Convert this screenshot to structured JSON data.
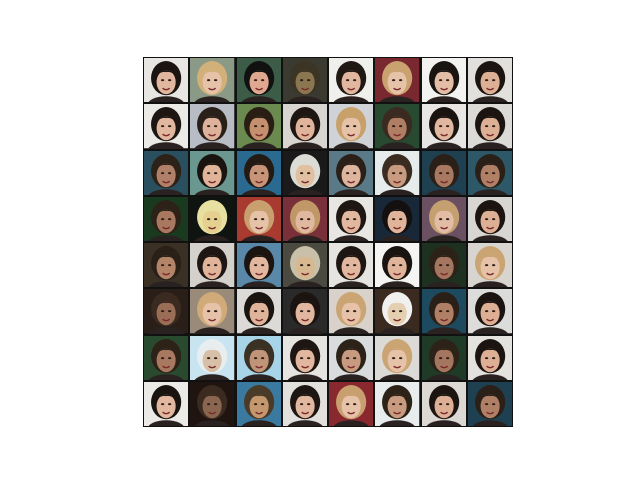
{
  "grid": {
    "rows": 8,
    "cols": 8,
    "tiles": [
      [
        {
          "bg": "#e8e6e2",
          "hair": "#1c1410",
          "skin": "#e2b79f"
        },
        {
          "bg": "#8a9a86",
          "hair": "#d2b07a",
          "skin": "#e6c2a8"
        },
        {
          "bg": "#3c5c48",
          "hair": "#111111",
          "skin": "#e0a890"
        },
        {
          "bg": "#3a3a30",
          "hair": "#3c3424",
          "skin": "#8a7650"
        },
        {
          "bg": "#efefec",
          "hair": "#201812",
          "skin": "#e2b79f"
        },
        {
          "bg": "#7a2830",
          "hair": "#caa270",
          "skin": "#e6c2a8"
        },
        {
          "bg": "#f2f2f0",
          "hair": "#1a1410",
          "skin": "#e4bda6"
        },
        {
          "bg": "#e2e0dc",
          "hair": "#1c1410",
          "skin": "#ddb096"
        }
      ],
      [
        {
          "bg": "#eceae6",
          "hair": "#1e1612",
          "skin": "#e2b79f"
        },
        {
          "bg": "#b8bcc4",
          "hair": "#2a201a",
          "skin": "#deb29a"
        },
        {
          "bg": "#6a8a50",
          "hair": "#2a1e14",
          "skin": "#c49070"
        },
        {
          "bg": "#d8d4d0",
          "hair": "#1e1612",
          "skin": "#e0b49a"
        },
        {
          "bg": "#cfd2d6",
          "hair": "#c8a06a",
          "skin": "#e6c2a8"
        },
        {
          "bg": "#284a30",
          "hair": "#3a2a20",
          "skin": "#b07e64"
        },
        {
          "bg": "#e8e6e4",
          "hair": "#1a1410",
          "skin": "#e2b79f"
        },
        {
          "bg": "#dcdad6",
          "hair": "#1c1410",
          "skin": "#ddb096"
        }
      ],
      [
        {
          "bg": "#2a5060",
          "hair": "#2c2218",
          "skin": "#b08068"
        },
        {
          "bg": "#6a9890",
          "hair": "#1a1410",
          "skin": "#e0b49a"
        },
        {
          "bg": "#2a6a90",
          "hair": "#241a14",
          "skin": "#c89478"
        },
        {
          "bg": "#1a1a1a",
          "hair": "#dcdcd6",
          "skin": "#e0c0a0"
        },
        {
          "bg": "#5a7a88",
          "hair": "#2a2018",
          "skin": "#ddb49e"
        },
        {
          "bg": "#e6ecec",
          "hair": "#3a2c20",
          "skin": "#c89a80"
        },
        {
          "bg": "#1e4050",
          "hair": "#2a2018",
          "skin": "#a87860"
        },
        {
          "bg": "#2c5868",
          "hair": "#2a2018",
          "skin": "#b08066"
        }
      ],
      [
        {
          "bg": "#1a3a20",
          "hair": "#2c2218",
          "skin": "#a87860"
        },
        {
          "bg": "#101410",
          "hair": "#e8e0a0",
          "skin": "#e6d090"
        },
        {
          "bg": "#a83a30",
          "hair": "#c8a070",
          "skin": "#e6c2a8"
        },
        {
          "bg": "#7a3038",
          "hair": "#c09868",
          "skin": "#e0b8a0"
        },
        {
          "bg": "#e8e6e2",
          "hair": "#1e1612",
          "skin": "#e2b79f"
        },
        {
          "bg": "#182838",
          "hair": "#141010",
          "skin": "#e0b49a"
        },
        {
          "bg": "#6a5060",
          "hair": "#c4a070",
          "skin": "#e2bca4"
        },
        {
          "bg": "#d8d6d2",
          "hair": "#1c1410",
          "skin": "#ddb096"
        }
      ],
      [
        {
          "bg": "#3a3024",
          "hair": "#2a2018",
          "skin": "#b48468"
        },
        {
          "bg": "#d4d0cc",
          "hair": "#1e1612",
          "skin": "#e0b49a"
        },
        {
          "bg": "#5a88a8",
          "hair": "#1c1410",
          "skin": "#e2b79f"
        },
        {
          "bg": "#4a4a40",
          "hair": "#c8c0a8",
          "skin": "#d8b890"
        },
        {
          "bg": "#e6e4e0",
          "hair": "#1e1612",
          "skin": "#e2b79f"
        },
        {
          "bg": "#f4f4f2",
          "hair": "#1a1410",
          "skin": "#e0b49a"
        },
        {
          "bg": "#1e3020",
          "hair": "#2c2218",
          "skin": "#a47660"
        },
        {
          "bg": "#d8d4d0",
          "hair": "#caa472",
          "skin": "#e6c2a8"
        }
      ],
      [
        {
          "bg": "#2a1e18",
          "hair": "#3a2a20",
          "skin": "#9a6e56"
        },
        {
          "bg": "#9a8a7a",
          "hair": "#d0aa78",
          "skin": "#e6c2a8"
        },
        {
          "bg": "#dcdad6",
          "hair": "#1a1410",
          "skin": "#e0b49a"
        },
        {
          "bg": "#2a2a2a",
          "hair": "#1c1410",
          "skin": "#e2b79f"
        },
        {
          "bg": "#d8d2ca",
          "hair": "#caa472",
          "skin": "#e6c2a8"
        },
        {
          "bg": "#3a2a20",
          "hair": "#f0f0ee",
          "skin": "#e4d0b0"
        },
        {
          "bg": "#1e4a60",
          "hair": "#2a2018",
          "skin": "#b08066"
        },
        {
          "bg": "#dcdcda",
          "hair": "#1c1410",
          "skin": "#ddb096"
        }
      ],
      [
        {
          "bg": "#2a4a30",
          "hair": "#2c2218",
          "skin": "#a87860"
        },
        {
          "bg": "#c8e4f0",
          "hair": "#e8eef0",
          "skin": "#d8c0a8"
        },
        {
          "bg": "#a8d4e8",
          "hair": "#3a3024",
          "skin": "#c09478"
        },
        {
          "bg": "#e6e4e0",
          "hair": "#1e1612",
          "skin": "#e2b79f"
        },
        {
          "bg": "#d8dcdc",
          "hair": "#2c2218",
          "skin": "#c89a80"
        },
        {
          "bg": "#dcdad6",
          "hair": "#caa472",
          "skin": "#e6c2a8"
        },
        {
          "bg": "#203a28",
          "hair": "#2c2218",
          "skin": "#a47660"
        },
        {
          "bg": "#e4e2de",
          "hair": "#1c1410",
          "skin": "#ddb096"
        }
      ],
      [
        {
          "bg": "#eceae6",
          "hair": "#1a1410",
          "skin": "#e2b79f"
        },
        {
          "bg": "#201410",
          "hair": "#3a2a20",
          "skin": "#8a6650"
        },
        {
          "bg": "#3a7aa0",
          "hair": "#4a3a28",
          "skin": "#c4986e"
        },
        {
          "bg": "#e2e0dc",
          "hair": "#1e1612",
          "skin": "#e2b79f"
        },
        {
          "bg": "#8a2830",
          "hair": "#c8a070",
          "skin": "#e6c2a8"
        },
        {
          "bg": "#e8ecec",
          "hair": "#2c2218",
          "skin": "#c89a80"
        },
        {
          "bg": "#dcd8d4",
          "hair": "#1c1410",
          "skin": "#ddb096"
        },
        {
          "bg": "#1e4050",
          "hair": "#2a2018",
          "skin": "#b08066"
        }
      ]
    ]
  }
}
